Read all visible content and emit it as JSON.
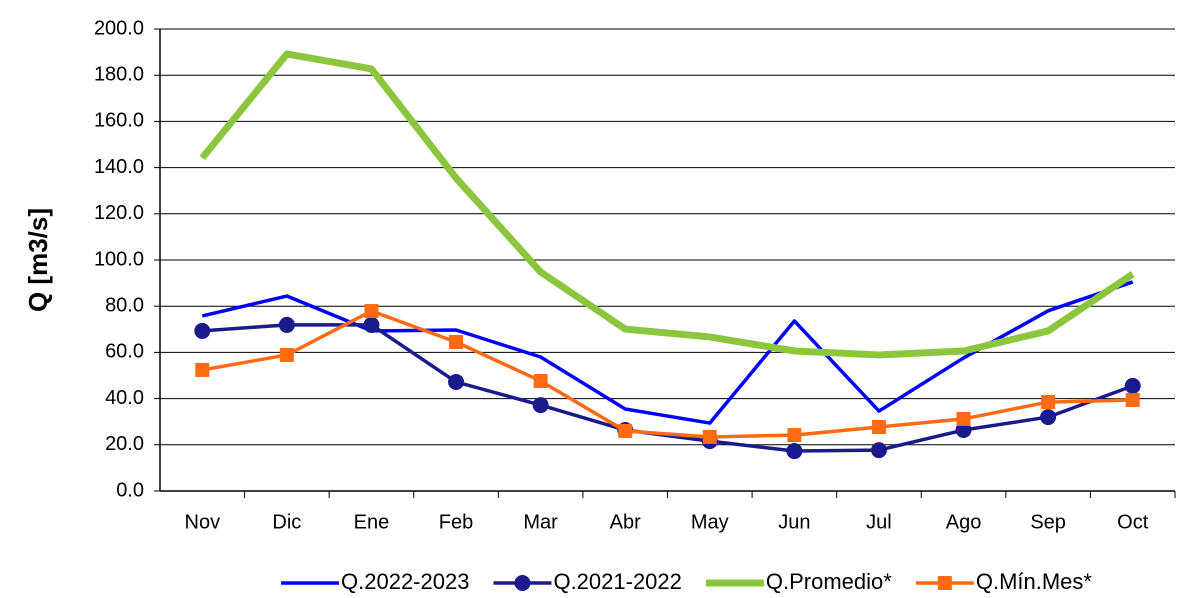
{
  "chart_data": {
    "type": "line",
    "y_label": "Q [m3/s]",
    "categories": [
      "Nov",
      "Dic",
      "Ene",
      "Feb",
      "Mar",
      "Abr",
      "May",
      "Jun",
      "Jul",
      "Ago",
      "Sep",
      "Oct"
    ],
    "series": [
      {
        "name": "Q.2022-2023",
        "color": "#0000ff",
        "marker": null,
        "values": [
          75.8,
          84.4,
          69.3,
          69.7,
          58,
          35.5,
          29.4,
          73.6,
          34.6,
          57.6,
          78,
          90.5
        ]
      },
      {
        "name": "Q.2021-2022",
        "color": "#1a1a8c",
        "marker": "circle",
        "values": [
          69.3,
          71.9,
          71.9,
          47.2,
          37.2,
          26.4,
          21.6,
          17.3,
          17.7,
          26.4,
          32,
          45.5
        ]
      },
      {
        "name": "Q.Promedio*",
        "color": "#8cc63f",
        "marker": null,
        "values": [
          144.2,
          189.2,
          182.7,
          135.5,
          94.8,
          70.1,
          66.7,
          60.6,
          58.9,
          60.6,
          69.3,
          93.9
        ]
      },
      {
        "name": "Q.Mín.Mes*",
        "color": "#ff6a13",
        "marker": "square",
        "values": [
          52.4,
          58.9,
          77.9,
          64.5,
          47.6,
          26,
          23.4,
          24.2,
          27.7,
          31.2,
          38.5,
          39.4
        ]
      }
    ],
    "ylim": [
      0,
      200
    ],
    "yticks": [
      {
        "value": 0,
        "label": "0.0"
      },
      {
        "value": 20,
        "label": "20.0"
      },
      {
        "value": 40,
        "label": "40.0"
      },
      {
        "value": 60,
        "label": "60.0"
      },
      {
        "value": 80,
        "label": "80.0"
      },
      {
        "value": 100,
        "label": "100.0"
      },
      {
        "value": 120,
        "label": "120.0"
      },
      {
        "value": 140,
        "label": "140.0"
      },
      {
        "value": 160,
        "label": "160.0"
      },
      {
        "value": 180,
        "label": "180.0"
      },
      {
        "value": 200,
        "label": "200.0"
      }
    ],
    "grid": true,
    "legend": "bottom"
  }
}
